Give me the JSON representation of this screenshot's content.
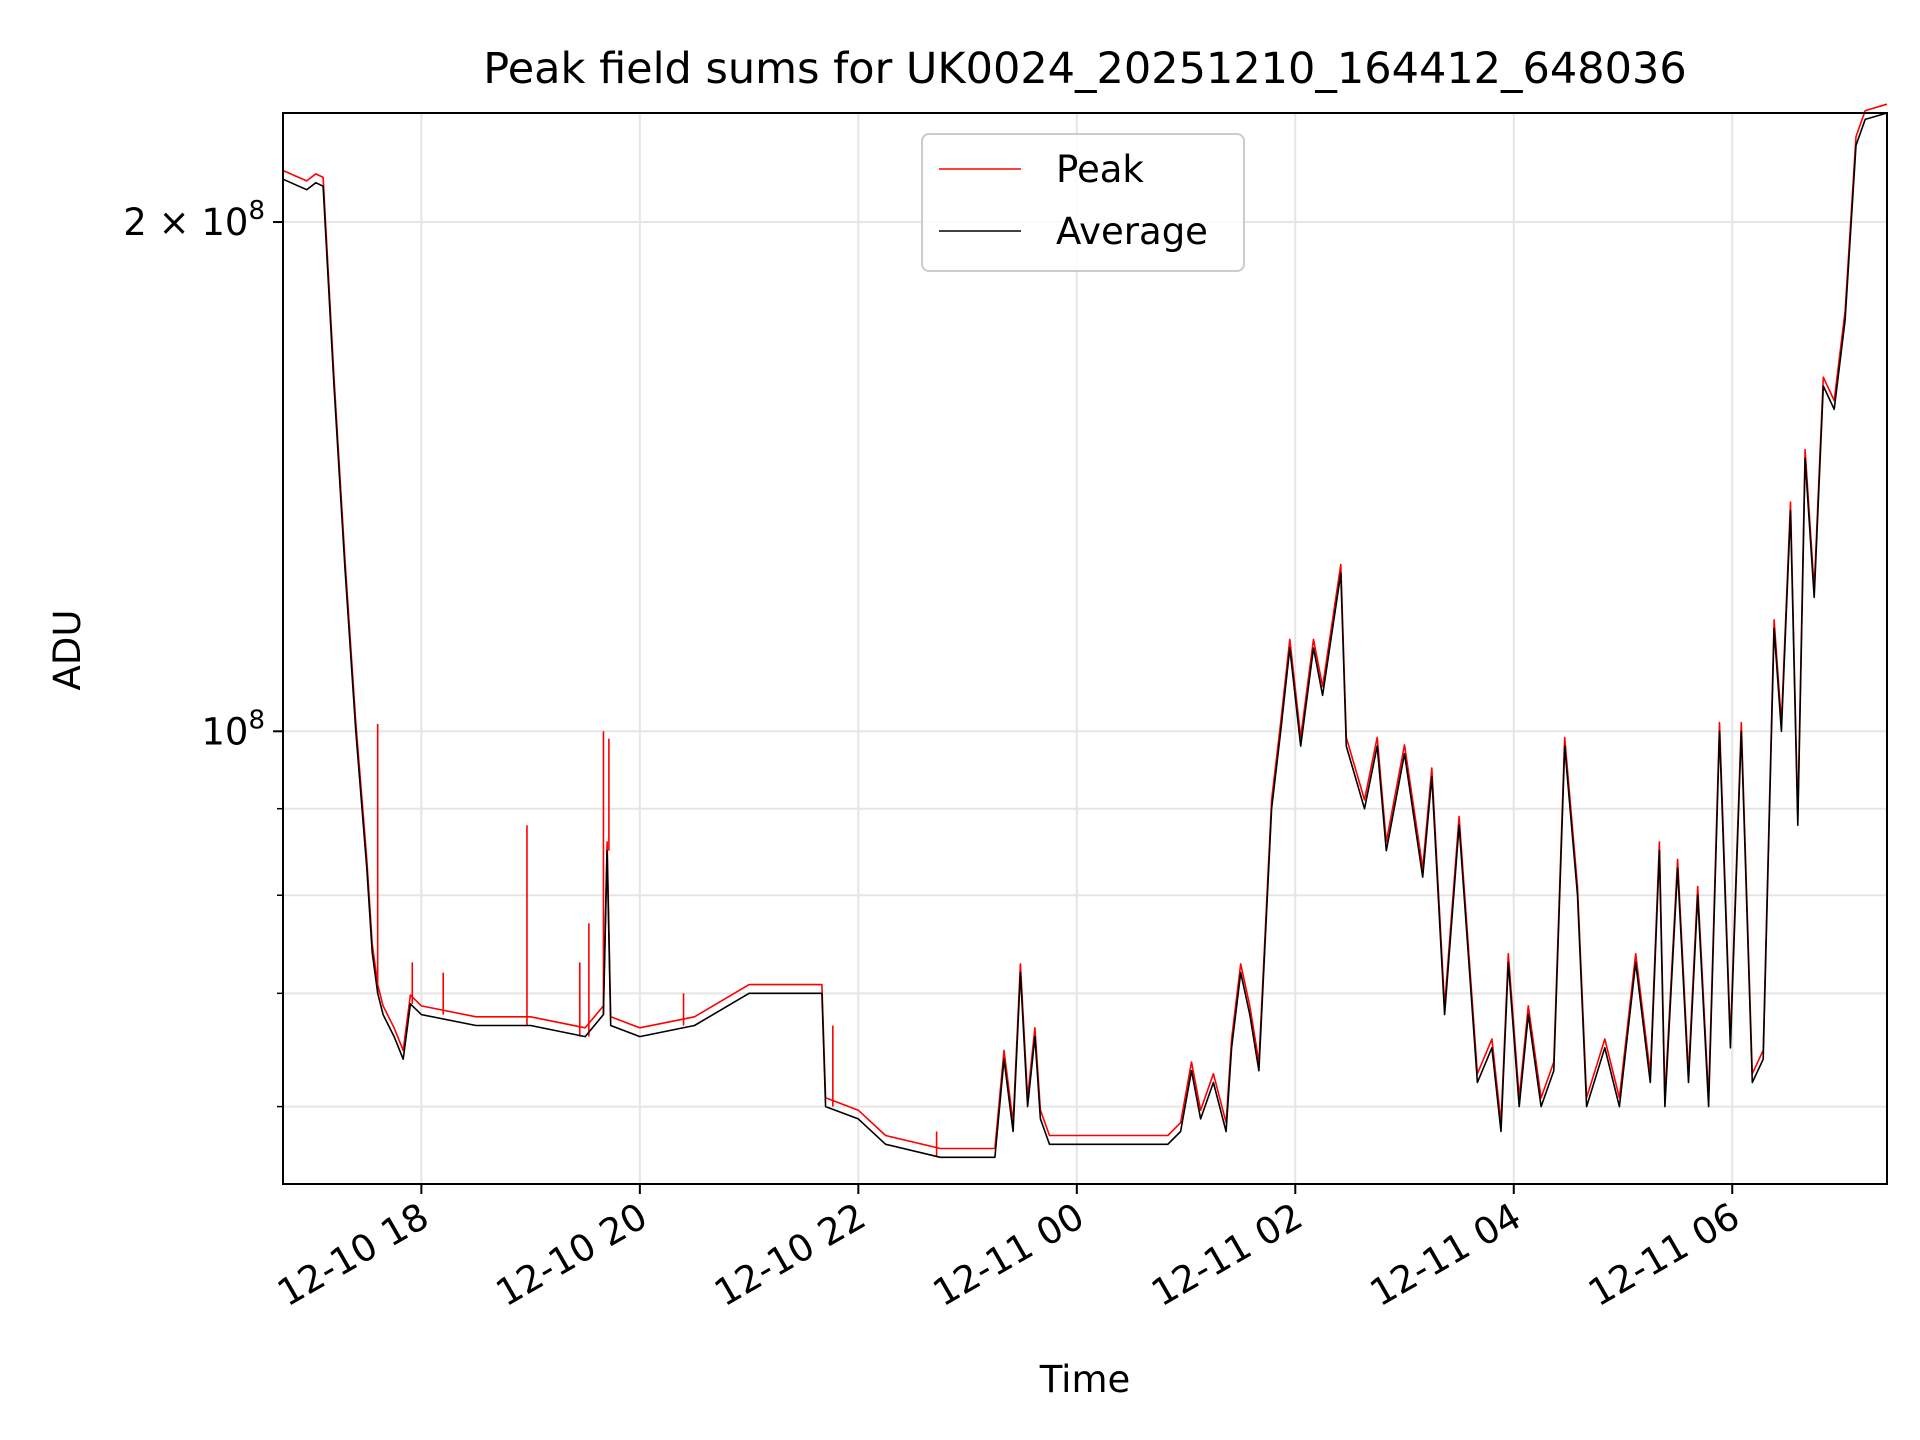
{
  "chart_data": {
    "type": "line",
    "title": "Peak field sums for UK0024_20251210_164412_648036",
    "xlabel": "Time",
    "ylabel": "ADU",
    "y_scale": "log",
    "ylim": [
      54000000,
      232000000
    ],
    "xlim": [
      "2025-12-10 16:44",
      "2025-12-11 07:25"
    ],
    "grid": true,
    "legend_position": "top-center",
    "x_ticks": [
      {
        "t": "2025-12-10 18:00",
        "label": "12-10 18"
      },
      {
        "t": "2025-12-10 20:00",
        "label": "12-10 20"
      },
      {
        "t": "2025-12-10 22:00",
        "label": "12-10 22"
      },
      {
        "t": "2025-12-11 00:00",
        "label": "12-11 00"
      },
      {
        "t": "2025-12-11 02:00",
        "label": "12-11 02"
      },
      {
        "t": "2025-12-11 04:00",
        "label": "12-11 04"
      },
      {
        "t": "2025-12-11 06:00",
        "label": "12-11 06"
      }
    ],
    "y_major_ticks": [
      {
        "v": 100000000,
        "base": "10",
        "exp": "8",
        "mult": ""
      },
      {
        "v": 200000000,
        "base": "10",
        "exp": "8",
        "mult": "2 × "
      }
    ],
    "y_minor_ticks": [
      60000000,
      70000000,
      80000000,
      90000000
    ],
    "series": [
      {
        "name": "Peak",
        "color": "#ff0000"
      },
      {
        "name": "Average",
        "color": "#000000"
      }
    ],
    "average": {
      "x": [
        "2025-12-10 16:44",
        "2025-12-10 16:57",
        "2025-12-10 17:02",
        "2025-12-10 17:06",
        "2025-12-10 17:12",
        "2025-12-10 17:18",
        "2025-12-10 17:24",
        "2025-12-10 17:30",
        "2025-12-10 17:33",
        "2025-12-10 17:36",
        "2025-12-10 17:39",
        "2025-12-10 17:45",
        "2025-12-10 17:50",
        "2025-12-10 17:54",
        "2025-12-10 18:00",
        "2025-12-10 18:30",
        "2025-12-10 19:00",
        "2025-12-10 19:30",
        "2025-12-10 19:40",
        "2025-12-10 19:42",
        "2025-12-10 19:44",
        "2025-12-10 20:00",
        "2025-12-10 20:30",
        "2025-12-10 21:00",
        "2025-12-10 21:30",
        "2025-12-10 21:40",
        "2025-12-10 21:42",
        "2025-12-10 22:00",
        "2025-12-10 22:15",
        "2025-12-10 22:45",
        "2025-12-10 23:15",
        "2025-12-10 23:20",
        "2025-12-10 23:25",
        "2025-12-10 23:29",
        "2025-12-10 23:33",
        "2025-12-10 23:37",
        "2025-12-10 23:40",
        "2025-12-10 23:45",
        "2025-12-10 23:52",
        "2025-12-11 00:00",
        "2025-12-11 00:30",
        "2025-12-11 00:50",
        "2025-12-11 00:57",
        "2025-12-11 01:03",
        "2025-12-11 01:08",
        "2025-12-11 01:15",
        "2025-12-11 01:22",
        "2025-12-11 01:25",
        "2025-12-11 01:30",
        "2025-12-11 01:35",
        "2025-12-11 01:40",
        "2025-12-11 01:47",
        "2025-12-11 01:52",
        "2025-12-11 01:57",
        "2025-12-11 02:03",
        "2025-12-11 02:10",
        "2025-12-11 02:15",
        "2025-12-11 02:25",
        "2025-12-11 02:28",
        "2025-12-11 02:38",
        "2025-12-11 02:45",
        "2025-12-11 02:50",
        "2025-12-11 03:00",
        "2025-12-11 03:10",
        "2025-12-11 03:15",
        "2025-12-11 03:22",
        "2025-12-11 03:30",
        "2025-12-11 03:40",
        "2025-12-11 03:48",
        "2025-12-11 03:53",
        "2025-12-11 03:57",
        "2025-12-11 04:03",
        "2025-12-11 04:08",
        "2025-12-11 04:15",
        "2025-12-11 04:22",
        "2025-12-11 04:28",
        "2025-12-11 04:35",
        "2025-12-11 04:40",
        "2025-12-11 04:50",
        "2025-12-11 04:58",
        "2025-12-11 05:07",
        "2025-12-11 05:15",
        "2025-12-11 05:20",
        "2025-12-11 05:23",
        "2025-12-11 05:30",
        "2025-12-11 05:36",
        "2025-12-11 05:41",
        "2025-12-11 05:47",
        "2025-12-11 05:53",
        "2025-12-11 05:59",
        "2025-12-11 06:05",
        "2025-12-11 06:11",
        "2025-12-11 06:17",
        "2025-12-11 06:23",
        "2025-12-11 06:27",
        "2025-12-11 06:32",
        "2025-12-11 06:36",
        "2025-12-11 06:40",
        "2025-12-11 06:45",
        "2025-12-11 06:50",
        "2025-12-11 06:56",
        "2025-12-11 07:02",
        "2025-12-11 07:08",
        "2025-12-11 07:13",
        "2025-12-11 07:25"
      ],
      "y": [
        212000000,
        209000000,
        211000000,
        210000000,
        160000000,
        125000000,
        100000000,
        83000000,
        74000000,
        70000000,
        68000000,
        66000000,
        64000000,
        69000000,
        68000000,
        67000000,
        67000000,
        66000000,
        68000000,
        85000000,
        67000000,
        66000000,
        67000000,
        70000000,
        70000000,
        70000000,
        60000000,
        59000000,
        57000000,
        56000000,
        56000000,
        64000000,
        58000000,
        72000000,
        60000000,
        66000000,
        59000000,
        57000000,
        57000000,
        57000000,
        57000000,
        57000000,
        58000000,
        63000000,
        59000000,
        62000000,
        58000000,
        65000000,
        72000000,
        68000000,
        63000000,
        90000000,
        100000000,
        112000000,
        98000000,
        112000000,
        105000000,
        124000000,
        98000000,
        90000000,
        98000000,
        85000000,
        97000000,
        82000000,
        94000000,
        68000000,
        88000000,
        62000000,
        65000000,
        58000000,
        73000000,
        60000000,
        68000000,
        60000000,
        63000000,
        98000000,
        80000000,
        60000000,
        65000000,
        60000000,
        73000000,
        62000000,
        85000000,
        60000000,
        83000000,
        62000000,
        80000000,
        60000000,
        100000000,
        65000000,
        100000000,
        62000000,
        64000000,
        115000000,
        100000000,
        135000000,
        88000000,
        145000000,
        120000000,
        160000000,
        155000000,
        175000000,
        222000000,
        230000000,
        232000000
      ]
    },
    "peak_spikes": [
      {
        "t": "2025-12-10 17:36",
        "y": 101000000
      },
      {
        "t": "2025-12-10 17:55",
        "y": 73000000
      },
      {
        "t": "2025-12-10 18:12",
        "y": 72000000
      },
      {
        "t": "2025-12-10 18:58",
        "y": 88000000
      },
      {
        "t": "2025-12-10 19:27",
        "y": 73000000
      },
      {
        "t": "2025-12-10 19:32",
        "y": 77000000
      },
      {
        "t": "2025-12-10 19:40",
        "y": 100000000
      },
      {
        "t": "2025-12-10 19:43",
        "y": 99000000
      },
      {
        "t": "2025-12-10 20:24",
        "y": 70000000
      },
      {
        "t": "2025-12-10 21:46",
        "y": 67000000
      },
      {
        "t": "2025-12-10 22:43",
        "y": 58000000
      }
    ]
  }
}
